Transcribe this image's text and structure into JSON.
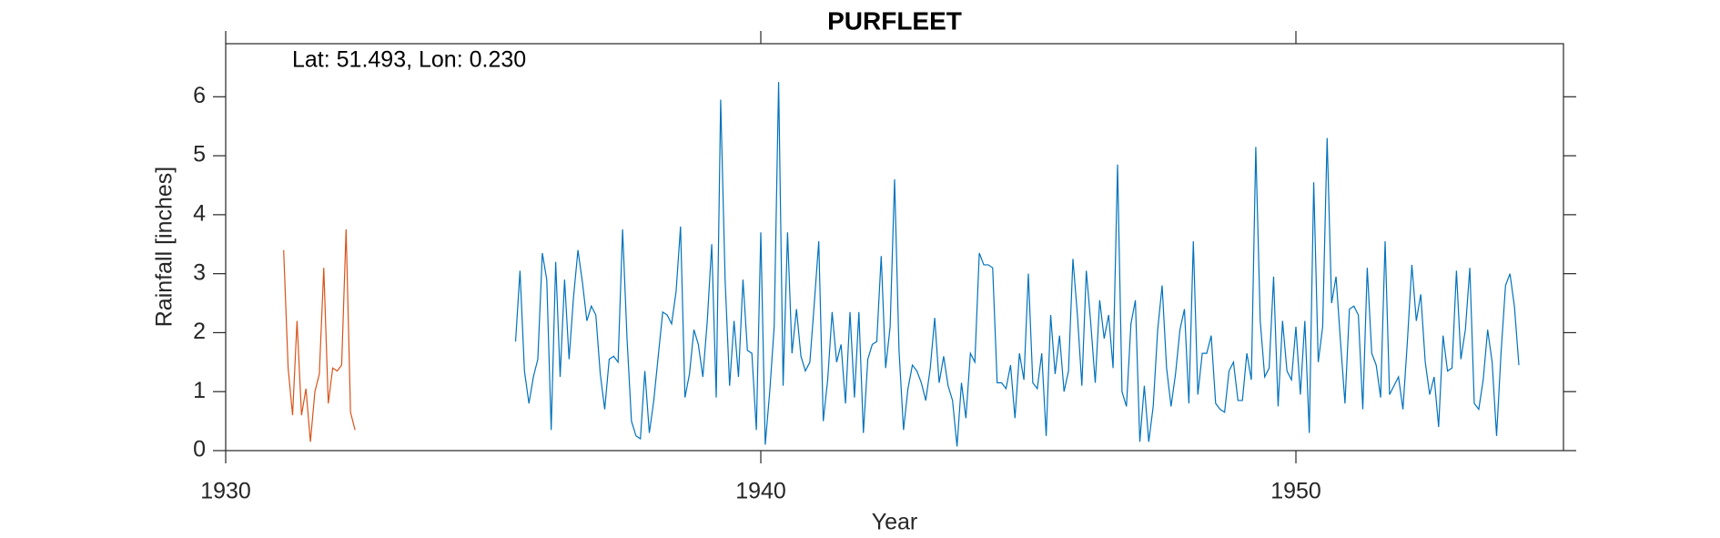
{
  "chart_data": {
    "type": "line",
    "title": "PURFLEET",
    "annotation": "Lat: 51.493, Lon: 0.230",
    "xlabel": "Year",
    "ylabel": "Rainfall [inches]",
    "xlim": [
      1930,
      1955
    ],
    "xticks": [
      1930,
      1940,
      1950
    ],
    "ylim": [
      0,
      6.9
    ],
    "yticks": [
      0,
      1,
      2,
      3,
      4,
      5,
      6
    ],
    "series": [
      {
        "color": "#d95319",
        "x": [
          1931.083,
          1931.167,
          1931.25,
          1931.333,
          1931.417,
          1931.5,
          1931.583,
          1931.667,
          1931.75,
          1931.833,
          1931.917,
          1932.0,
          1932.083,
          1932.167,
          1932.25,
          1932.333,
          1932.417
        ],
        "values": [
          3.4,
          1.4,
          0.6,
          2.2,
          0.6,
          1.05,
          0.15,
          1.0,
          1.3,
          3.1,
          0.8,
          1.4,
          1.35,
          1.45,
          3.75,
          0.65,
          0.35
        ]
      },
      {
        "color": "#0072bd",
        "x": [
          1935.417,
          1935.5,
          1935.583,
          1935.667,
          1935.75,
          1935.833,
          1935.917,
          1936.0,
          1936.083,
          1936.167,
          1936.25,
          1936.333,
          1936.417,
          1936.5,
          1936.583,
          1936.667,
          1936.75,
          1936.833,
          1936.917,
          1937.0,
          1937.083,
          1937.167,
          1937.25,
          1937.333,
          1937.417,
          1937.5,
          1937.583,
          1937.667,
          1937.75,
          1937.833,
          1937.917,
          1938.0,
          1938.083,
          1938.167,
          1938.25,
          1938.333,
          1938.417,
          1938.5,
          1938.583,
          1938.667,
          1938.75,
          1938.833,
          1938.917,
          1939.0,
          1939.083,
          1939.167,
          1939.25,
          1939.333,
          1939.417,
          1939.5,
          1939.583,
          1939.667,
          1939.75,
          1939.833,
          1939.917,
          1940.0,
          1940.083,
          1940.167,
          1940.25,
          1940.333,
          1940.417,
          1940.5,
          1940.583,
          1940.667,
          1940.75,
          1940.833,
          1940.917,
          1941.0,
          1941.083,
          1941.167,
          1941.25,
          1941.333,
          1941.417,
          1941.5,
          1941.583,
          1941.667,
          1941.75,
          1941.833,
          1941.917,
          1942.0,
          1942.083,
          1942.167,
          1942.25,
          1942.333,
          1942.417,
          1942.5,
          1942.583,
          1942.667,
          1942.75,
          1942.833,
          1942.917,
          1943.0,
          1943.083,
          1943.167,
          1943.25,
          1943.333,
          1943.417,
          1943.5,
          1943.583,
          1943.667,
          1943.75,
          1943.833,
          1943.917,
          1944.0,
          1944.083,
          1944.167,
          1944.25,
          1944.333,
          1944.417,
          1944.5,
          1944.583,
          1944.667,
          1944.75,
          1944.833,
          1944.917,
          1945.0,
          1945.083,
          1945.167,
          1945.25,
          1945.333,
          1945.417,
          1945.5,
          1945.583,
          1945.667,
          1945.75,
          1945.833,
          1945.917,
          1946.0,
          1946.083,
          1946.167,
          1946.25,
          1946.333,
          1946.417,
          1946.5,
          1946.583,
          1946.667,
          1946.75,
          1946.833,
          1946.917,
          1947.0,
          1947.083,
          1947.167,
          1947.25,
          1947.333,
          1947.417,
          1947.5,
          1947.583,
          1947.667,
          1947.75,
          1947.833,
          1947.917,
          1948.0,
          1948.083,
          1948.167,
          1948.25,
          1948.333,
          1948.417,
          1948.5,
          1948.583,
          1948.667,
          1948.75,
          1948.833,
          1948.917,
          1949.0,
          1949.083,
          1949.167,
          1949.25,
          1949.333,
          1949.417,
          1949.5,
          1949.583,
          1949.667,
          1949.75,
          1949.833,
          1949.917,
          1950.0,
          1950.083,
          1950.167,
          1950.25,
          1950.333,
          1950.417,
          1950.5,
          1950.583,
          1950.667,
          1950.75,
          1950.833,
          1950.917,
          1951.0,
          1951.083,
          1951.167,
          1951.25,
          1951.333,
          1951.417,
          1951.5,
          1951.583,
          1951.667,
          1951.75,
          1951.833,
          1951.917,
          1952.0,
          1952.083,
          1952.167,
          1952.25,
          1952.333,
          1952.417,
          1952.5,
          1952.583,
          1952.667,
          1952.75,
          1952.833,
          1952.917,
          1953.0,
          1953.083,
          1953.167,
          1953.25,
          1953.333,
          1953.417,
          1953.5,
          1953.583,
          1953.667,
          1953.75,
          1953.833,
          1953.917,
          1954.0,
          1954.083,
          1954.167
        ],
        "values": [
          1.85,
          3.05,
          1.35,
          0.8,
          1.25,
          1.55,
          3.35,
          2.9,
          0.35,
          3.2,
          1.25,
          2.9,
          1.55,
          2.6,
          3.4,
          2.85,
          2.2,
          2.45,
          2.3,
          1.3,
          0.7,
          1.55,
          1.6,
          1.5,
          3.75,
          1.9,
          0.5,
          0.25,
          0.2,
          1.35,
          0.3,
          0.85,
          1.6,
          2.35,
          2.3,
          2.15,
          2.7,
          3.8,
          0.9,
          1.3,
          2.05,
          1.8,
          1.25,
          2.2,
          3.5,
          0.9,
          5.95,
          2.9,
          1.1,
          2.2,
          1.25,
          2.9,
          1.7,
          1.65,
          0.35,
          3.7,
          0.1,
          1.0,
          2.1,
          6.25,
          1.1,
          3.7,
          1.65,
          2.4,
          1.6,
          1.35,
          1.5,
          2.5,
          3.55,
          0.5,
          1.2,
          2.35,
          1.5,
          1.8,
          0.8,
          2.35,
          0.9,
          2.35,
          0.3,
          1.55,
          1.8,
          1.85,
          3.3,
          1.4,
          2.1,
          4.6,
          1.7,
          0.35,
          1.05,
          1.45,
          1.35,
          1.15,
          0.85,
          1.4,
          2.25,
          1.15,
          1.6,
          1.1,
          0.85,
          0.07,
          1.15,
          0.55,
          1.65,
          1.5,
          3.35,
          3.15,
          3.15,
          3.1,
          1.15,
          1.15,
          1.05,
          1.45,
          0.55,
          1.65,
          1.2,
          3.0,
          1.15,
          1.05,
          1.65,
          0.25,
          2.3,
          1.3,
          1.95,
          1.0,
          1.35,
          3.25,
          2.3,
          1.1,
          3.05,
          2.15,
          1.15,
          2.55,
          1.9,
          2.3,
          1.4,
          4.85,
          1.0,
          0.75,
          2.15,
          2.55,
          0.15,
          1.1,
          0.15,
          0.75,
          2.05,
          2.8,
          1.4,
          0.75,
          1.3,
          2.05,
          2.4,
          0.8,
          3.55,
          0.95,
          1.65,
          1.65,
          1.95,
          0.8,
          0.7,
          0.65,
          1.35,
          1.5,
          0.85,
          0.85,
          1.65,
          1.2,
          5.15,
          2.2,
          1.25,
          1.4,
          2.95,
          0.75,
          2.2,
          1.35,
          1.2,
          2.1,
          0.95,
          2.2,
          0.3,
          4.55,
          1.5,
          2.1,
          5.3,
          2.5,
          2.95,
          1.85,
          0.8,
          2.4,
          2.45,
          2.3,
          0.7,
          3.1,
          1.65,
          1.45,
          0.9,
          3.55,
          0.95,
          1.1,
          1.25,
          0.7,
          1.85,
          3.15,
          2.2,
          2.65,
          1.5,
          0.95,
          1.25,
          0.4,
          1.95,
          1.35,
          1.4,
          3.05,
          1.55,
          2.05,
          3.1,
          0.8,
          0.7,
          1.2,
          2.05,
          1.5,
          0.25,
          1.65,
          2.8,
          3.0,
          2.45,
          1.45
        ]
      }
    ]
  }
}
